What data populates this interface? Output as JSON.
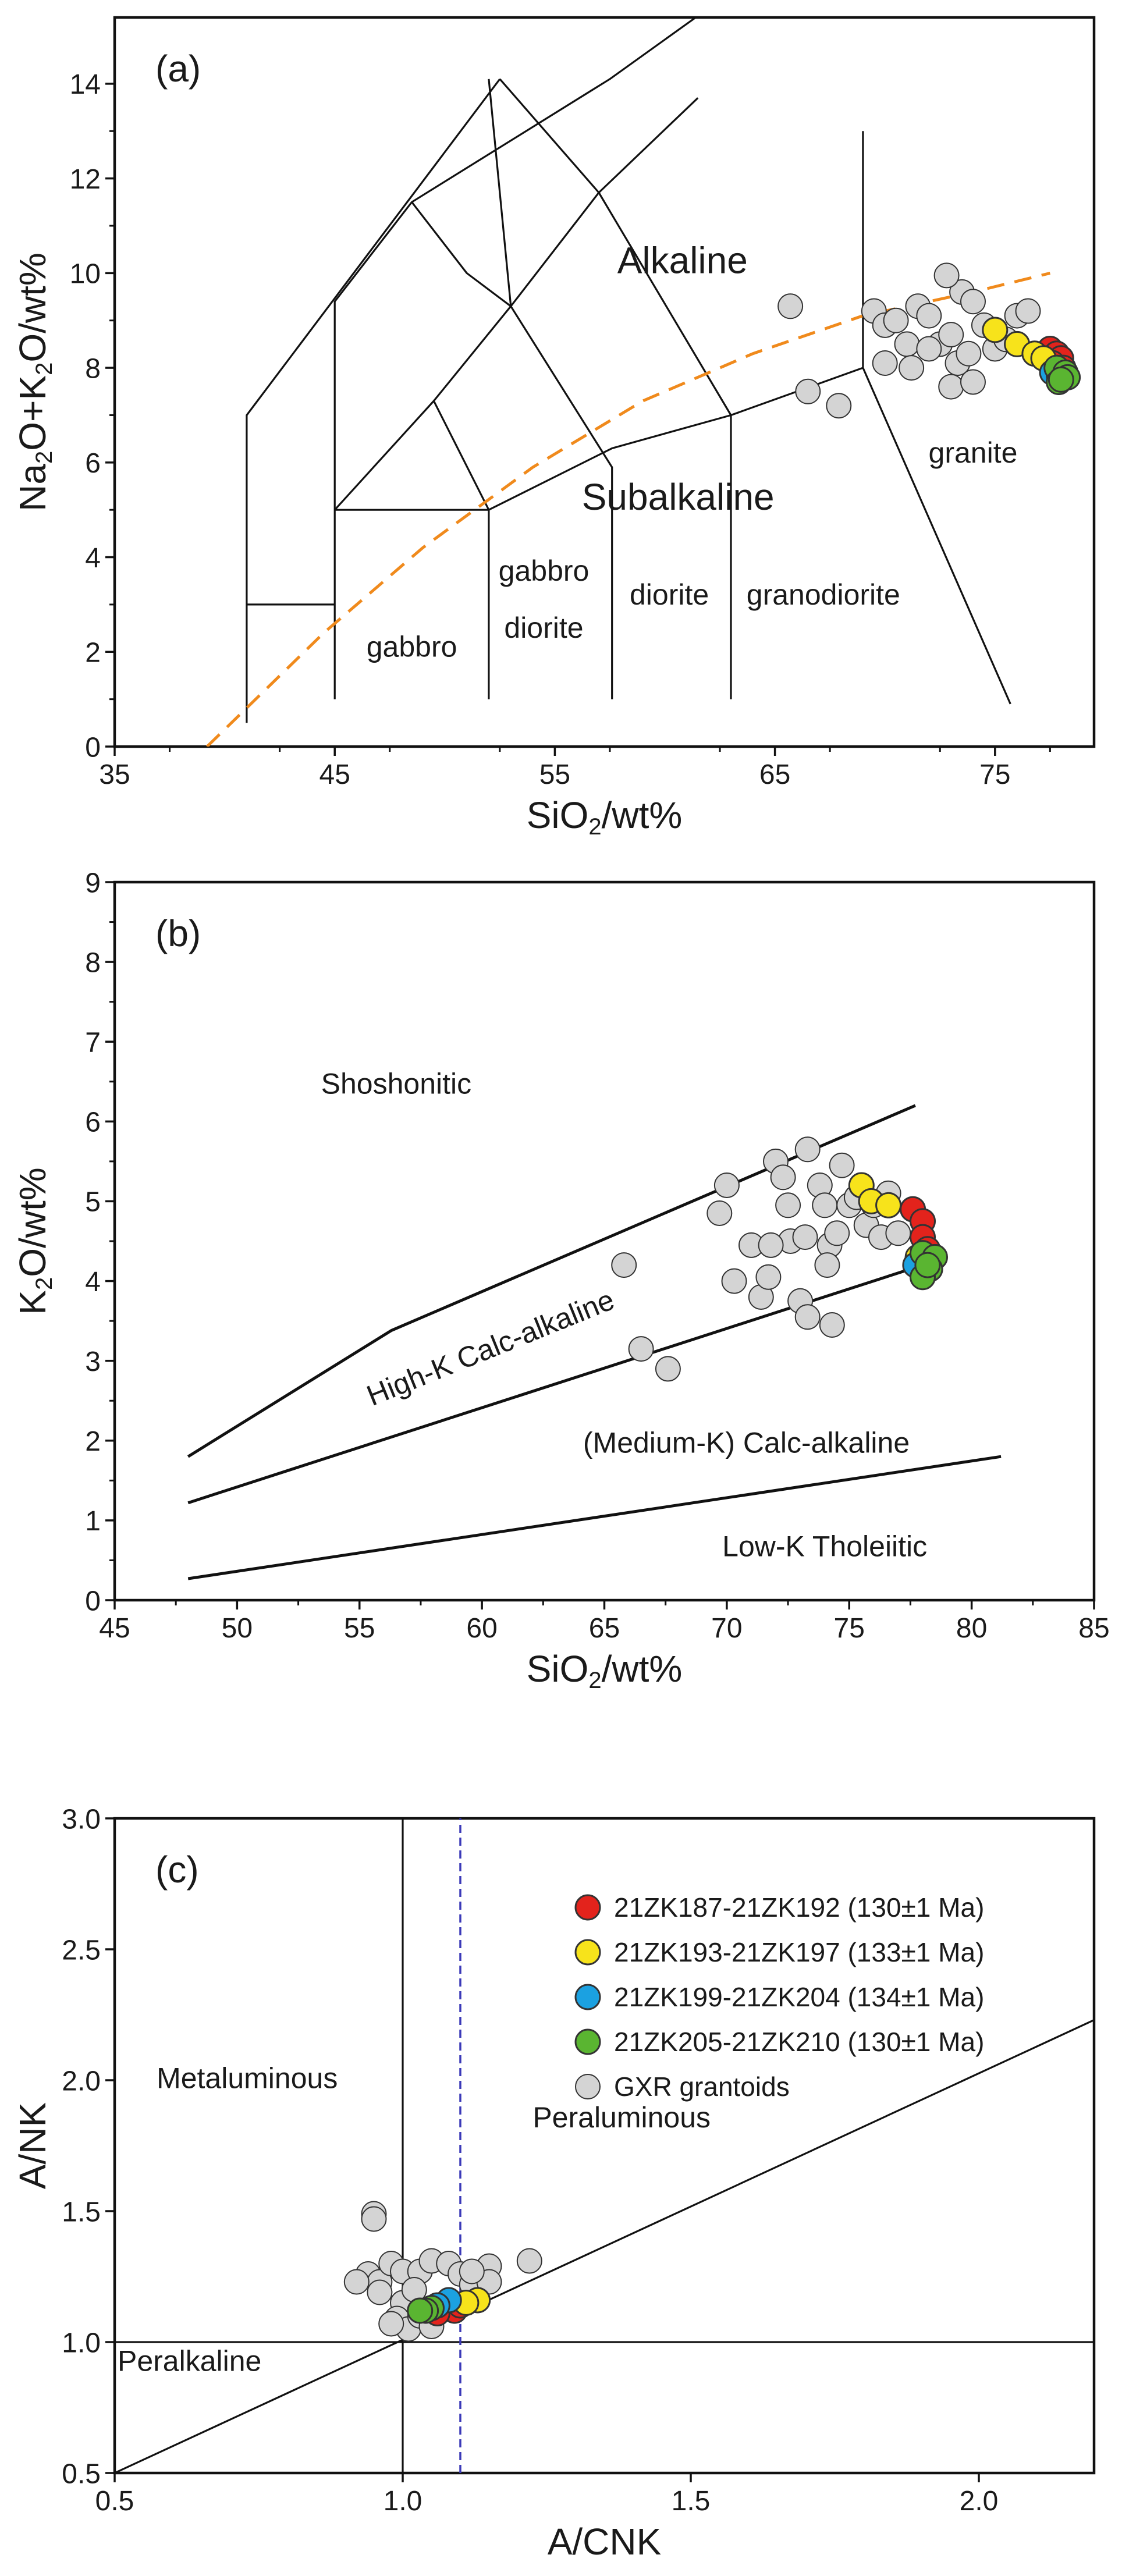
{
  "chart_data": [
    {
      "type": "scatter",
      "panel_label": "(a)",
      "xlabel_main": "SiO",
      "xlabel_sub": "2",
      "xlabel_tail": "/wt%",
      "ylabel_parts": [
        "Na",
        "2",
        "O+K",
        "2",
        "O/wt%"
      ],
      "xlim": [
        35,
        79.5
      ],
      "ylim": [
        0,
        15.4
      ],
      "xticks": [
        35,
        45,
        55,
        65,
        75
      ],
      "yticks": [
        0,
        2,
        4,
        6,
        8,
        10,
        12,
        14
      ],
      "field_lines": [
        [
          [
            41,
            0.5
          ],
          [
            41,
            7.0
          ],
          [
            52.5,
            14.1
          ]
        ],
        [
          [
            41,
            3.0
          ],
          [
            45,
            3.0
          ]
        ],
        [
          [
            45,
            1.0
          ],
          [
            45,
            9.4
          ],
          [
            48.5,
            11.5
          ],
          [
            57.5,
            14.1
          ],
          [
            63.2,
            16.0
          ]
        ],
        [
          [
            45,
            5.0
          ],
          [
            49.5,
            7.3
          ],
          [
            53,
            9.3
          ],
          [
            57,
            11.7
          ],
          [
            61.5,
            13.7
          ]
        ],
        [
          [
            45,
            5.0
          ],
          [
            52,
            5.0
          ],
          [
            57.6,
            6.3
          ],
          [
            63,
            7.0
          ],
          [
            69,
            8.0
          ],
          [
            69,
            13.0
          ]
        ],
        [
          [
            52,
            1.0
          ],
          [
            52,
            5.0
          ],
          [
            49.5,
            7.3
          ]
        ],
        [
          [
            57.6,
            1.0
          ],
          [
            57.6,
            5.9
          ],
          [
            53,
            9.3
          ],
          [
            52,
            14.1
          ]
        ],
        [
          [
            63,
            1.0
          ],
          [
            63,
            7.0
          ],
          [
            57,
            11.7
          ],
          [
            52.5,
            14.1
          ]
        ],
        [
          [
            69,
            8.0
          ],
          [
            75.7,
            0.9
          ]
        ],
        [
          [
            48.5,
            11.5
          ],
          [
            51,
            10.0
          ],
          [
            53,
            9.3
          ]
        ]
      ],
      "alkaline_boundary": [
        [
          39.2,
          0
        ],
        [
          44.5,
          2.4
        ],
        [
          49,
          4.2
        ],
        [
          54,
          5.9
        ],
        [
          59,
          7.3
        ],
        [
          64,
          8.3
        ],
        [
          69,
          9.1
        ],
        [
          74,
          9.6
        ],
        [
          77.5,
          10.0
        ]
      ],
      "field_labels": [
        {
          "text": "Alkaline",
          "x": 60.8,
          "y": 10.0,
          "size": "large"
        },
        {
          "text": "Subalkaline",
          "x": 60.6,
          "y": 5.0,
          "size": "large"
        },
        {
          "text": "granite",
          "x": 74.0,
          "y": 6.0,
          "size": "small"
        },
        {
          "text": "gabbro",
          "x": 48.5,
          "y": 1.9,
          "size": "small"
        },
        {
          "text": "gabbro",
          "x": 54.5,
          "y": 3.5,
          "size": "small"
        },
        {
          "text": "diorite",
          "x": 54.5,
          "y": 2.3,
          "size": "small"
        },
        {
          "text": "diorite",
          "x": 60.2,
          "y": 3.0,
          "size": "small"
        },
        {
          "text": "granodiorite",
          "x": 67.2,
          "y": 3.0,
          "size": "small"
        }
      ],
      "series": [
        {
          "key": "g1",
          "values": [
            [
              77.5,
              8.4
            ],
            [
              77.8,
              8.3
            ],
            [
              78.0,
              8.2
            ],
            [
              77.6,
              8.1
            ],
            [
              78.1,
              8.0
            ]
          ]
        },
        {
          "key": "g2",
          "values": [
            [
              75.0,
              8.8
            ],
            [
              76.0,
              8.5
            ],
            [
              76.8,
              8.3
            ],
            [
              77.2,
              8.2
            ]
          ]
        },
        {
          "key": "g3",
          "values": [
            [
              77.6,
              7.9
            ],
            [
              77.9,
              7.85
            ]
          ]
        },
        {
          "key": "g4",
          "values": [
            [
              77.8,
              8.0
            ],
            [
              78.2,
              7.9
            ],
            [
              77.9,
              7.7
            ],
            [
              78.3,
              7.8
            ],
            [
              78.0,
              7.75
            ]
          ]
        },
        {
          "key": "ref",
          "values": [
            [
              65.7,
              9.3
            ],
            [
              66.5,
              7.5
            ],
            [
              67.9,
              7.2
            ],
            [
              69.5,
              9.2
            ],
            [
              70.0,
              8.9
            ],
            [
              70.5,
              9.0
            ],
            [
              70.0,
              8.1
            ],
            [
              71.0,
              8.5
            ],
            [
              71.5,
              9.3
            ],
            [
              72.0,
              9.1
            ],
            [
              72.5,
              8.5
            ],
            [
              73.0,
              8.7
            ],
            [
              73.3,
              8.1
            ],
            [
              73.8,
              8.3
            ],
            [
              73.5,
              9.6
            ],
            [
              74.0,
              9.4
            ],
            [
              74.5,
              8.9
            ],
            [
              75.0,
              8.4
            ],
            [
              75.5,
              8.6
            ],
            [
              76.0,
              9.1
            ],
            [
              76.5,
              9.2
            ],
            [
              73.0,
              7.6
            ],
            [
              74.0,
              7.7
            ],
            [
              72.0,
              8.4
            ],
            [
              71.2,
              8.0
            ],
            [
              72.8,
              9.95
            ]
          ]
        }
      ]
    },
    {
      "type": "scatter",
      "panel_label": "(b)",
      "xlabel_main": "SiO",
      "xlabel_sub": "2",
      "xlabel_tail": "/wt%",
      "ylabel_parts": [
        "K",
        "2",
        "O/wt%"
      ],
      "xlim": [
        45,
        85
      ],
      "ylim": [
        0,
        9
      ],
      "xticks": [
        45,
        50,
        55,
        60,
        65,
        70,
        75,
        80,
        85
      ],
      "yticks": [
        0,
        1,
        2,
        3,
        4,
        5,
        6,
        7,
        8,
        9
      ],
      "field_lines": [
        [
          [
            48,
            1.8
          ],
          [
            56.3,
            3.38
          ],
          [
            77.7,
            6.2
          ]
        ],
        [
          [
            48,
            1.22
          ],
          [
            78.2,
            4.22
          ]
        ],
        [
          [
            48,
            0.27
          ],
          [
            81.2,
            1.8
          ]
        ]
      ],
      "field_labels": [
        {
          "text": "Shoshonitic",
          "x": 56.5,
          "y": 6.35,
          "size": "small",
          "rotate": 0
        },
        {
          "text": "High-K Calc-alkaline",
          "x": 60.5,
          "y": 3.05,
          "size": "small",
          "rotate": -22
        },
        {
          "text": "(Medium-K) Calc-alkaline",
          "x": 70.8,
          "y": 1.85,
          "size": "small",
          "rotate": 0
        },
        {
          "text": "Low-K Tholeiitic",
          "x": 74.0,
          "y": 0.55,
          "size": "small",
          "rotate": 0
        }
      ],
      "series": [
        {
          "key": "g1",
          "values": [
            [
              77.6,
              4.9
            ],
            [
              78.0,
              4.75
            ],
            [
              78.0,
              4.55
            ],
            [
              78.2,
              4.4
            ]
          ]
        },
        {
          "key": "g2",
          "values": [
            [
              75.5,
              5.2
            ],
            [
              75.9,
              5.0
            ],
            [
              76.6,
              4.95
            ],
            [
              77.8,
              4.3
            ]
          ]
        },
        {
          "key": "g3",
          "values": [
            [
              77.7,
              4.2
            ]
          ]
        },
        {
          "key": "g4",
          "values": [
            [
              78.0,
              4.35
            ],
            [
              78.5,
              4.3
            ],
            [
              78.3,
              4.15
            ],
            [
              78.0,
              4.05
            ],
            [
              78.2,
              4.2
            ]
          ]
        },
        {
          "key": "ref",
          "values": [
            [
              65.8,
              4.2
            ],
            [
              66.5,
              3.15
            ],
            [
              67.6,
              2.9
            ],
            [
              69.7,
              4.85
            ],
            [
              70.0,
              5.2
            ],
            [
              70.3,
              4.0
            ],
            [
              71.0,
              4.45
            ],
            [
              71.4,
              3.8
            ],
            [
              71.7,
              4.05
            ],
            [
              72.0,
              5.5
            ],
            [
              72.3,
              5.3
            ],
            [
              72.6,
              4.5
            ],
            [
              73.0,
              3.75
            ],
            [
              73.2,
              4.55
            ],
            [
              73.3,
              3.55
            ],
            [
              73.3,
              5.65
            ],
            [
              73.8,
              5.2
            ],
            [
              74.0,
              4.95
            ],
            [
              74.2,
              4.45
            ],
            [
              74.3,
              3.45
            ],
            [
              74.5,
              4.6
            ],
            [
              74.7,
              5.45
            ],
            [
              75.0,
              4.95
            ],
            [
              75.3,
              5.05
            ],
            [
              75.7,
              4.7
            ],
            [
              76.0,
              4.95
            ],
            [
              76.3,
              4.55
            ],
            [
              76.6,
              5.1
            ],
            [
              77.0,
              4.6
            ],
            [
              71.8,
              4.45
            ],
            [
              72.5,
              4.95
            ],
            [
              74.1,
              4.2
            ]
          ]
        }
      ]
    },
    {
      "type": "scatter",
      "panel_label": "(c)",
      "xlabel_main": "A/CNK",
      "xlabel_sub": "",
      "xlabel_tail": "",
      "ylabel_parts": [
        "A/NK"
      ],
      "xlim": [
        0.5,
        2.2
      ],
      "ylim": [
        0.5,
        3.0
      ],
      "xticks": [
        0.5,
        1.0,
        1.5,
        2.0
      ],
      "yticks": [
        0.5,
        1.0,
        1.5,
        2.0,
        2.5,
        3.0
      ],
      "xtick_labels": [
        "0.5",
        "1.0",
        "1.5",
        "2.0"
      ],
      "ytick_labels": [
        "0.5",
        "1.0",
        "1.5",
        "2.0",
        "2.5",
        "3.0"
      ],
      "field_lines": [
        [
          [
            1.0,
            0.5
          ],
          [
            1.0,
            3.0
          ]
        ],
        [
          [
            0.5,
            1.0
          ],
          [
            2.2,
            1.0
          ]
        ],
        [
          [
            0.5,
            0.5
          ],
          [
            2.2,
            2.23
          ]
        ]
      ],
      "dashed_line": [
        [
          1.1,
          0.5
        ],
        [
          1.1,
          3.0
        ]
      ],
      "field_labels": [
        {
          "text": "Metaluminous",
          "x": 0.73,
          "y": 1.97,
          "size": "small"
        },
        {
          "text": "Peraluminous",
          "x": 1.38,
          "y": 1.82,
          "size": "small"
        },
        {
          "text": "Peralkaline",
          "x": 0.63,
          "y": 0.89,
          "size": "small"
        }
      ],
      "legend": {
        "position": "top-right",
        "entries": [
          {
            "key": "g1",
            "label": "21ZK187-21ZK192 (130±1 Ma)"
          },
          {
            "key": "g2",
            "label": "21ZK193-21ZK197 (133±1 Ma)"
          },
          {
            "key": "g3",
            "label": "21ZK199-21ZK204 (134±1 Ma)"
          },
          {
            "key": "g4",
            "label": "21ZK205-21ZK210 (130±1 Ma)"
          },
          {
            "key": "ref",
            "label": "GXR grantoids"
          }
        ]
      },
      "series": [
        {
          "key": "g1",
          "values": [
            [
              1.07,
              1.13
            ],
            [
              1.09,
              1.12
            ],
            [
              1.1,
              1.14
            ],
            [
              1.06,
              1.11
            ]
          ]
        },
        {
          "key": "g2",
          "values": [
            [
              1.13,
              1.16
            ],
            [
              1.11,
              1.15
            ]
          ]
        },
        {
          "key": "g3",
          "values": [
            [
              1.08,
              1.16
            ],
            [
              1.06,
              1.14
            ]
          ]
        },
        {
          "key": "g4",
          "values": [
            [
              1.05,
              1.13
            ],
            [
              1.04,
              1.12
            ],
            [
              1.03,
              1.12
            ]
          ]
        },
        {
          "key": "ref",
          "values": [
            [
              0.95,
              1.49
            ],
            [
              0.95,
              1.47
            ],
            [
              0.94,
              1.26
            ],
            [
              0.96,
              1.23
            ],
            [
              0.98,
              1.3
            ],
            [
              0.92,
              1.23
            ],
            [
              0.96,
              1.19
            ],
            [
              1.0,
              1.27
            ],
            [
              1.03,
              1.27
            ],
            [
              1.05,
              1.31
            ],
            [
              1.08,
              1.3
            ],
            [
              1.1,
              1.26
            ],
            [
              1.12,
              1.22
            ],
            [
              1.15,
              1.29
            ],
            [
              1.22,
              1.31
            ],
            [
              1.0,
              1.15
            ],
            [
              1.02,
              1.2
            ],
            [
              0.99,
              1.09
            ],
            [
              1.01,
              1.05
            ],
            [
              1.03,
              1.1
            ],
            [
              1.05,
              1.06
            ],
            [
              1.15,
              1.23
            ],
            [
              1.12,
              1.27
            ],
            [
              0.98,
              1.07
            ]
          ]
        }
      ]
    }
  ],
  "colors": {
    "g1": "#e3231c",
    "g2": "#f7e31b",
    "g3": "#1ba1e1",
    "g4": "#5ab531",
    "ref": "#d4d4d4",
    "marker_stroke": "#333333",
    "boundary": "#f08a1c",
    "dashed": "#3b3ab8",
    "line": "#111111"
  }
}
